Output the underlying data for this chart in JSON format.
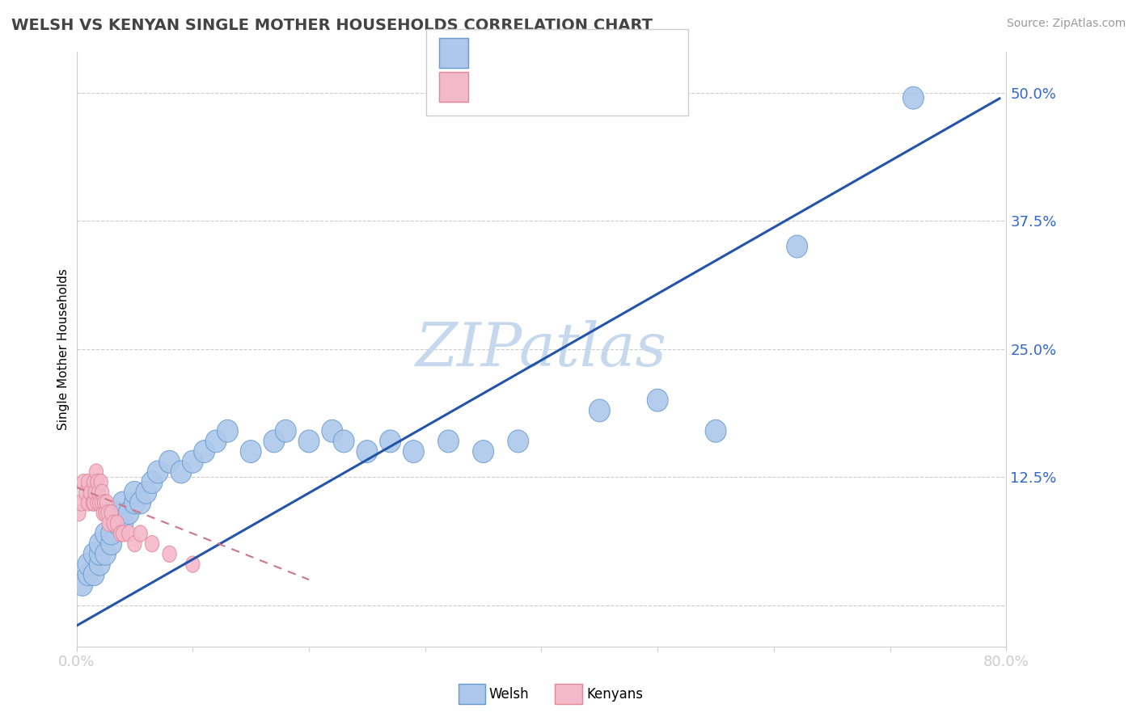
{
  "title": "WELSH VS KENYAN SINGLE MOTHER HOUSEHOLDS CORRELATION CHART",
  "source": "Source: ZipAtlas.com",
  "ylabel": "Single Mother Households",
  "xlim": [
    0.0,
    0.8
  ],
  "ylim": [
    -0.04,
    0.54
  ],
  "yticks": [
    0.0,
    0.125,
    0.25,
    0.375,
    0.5
  ],
  "ytick_labels": [
    "",
    "12.5%",
    "25.0%",
    "37.5%",
    "50.0%"
  ],
  "xticks": [
    0.0,
    0.1,
    0.2,
    0.3,
    0.4,
    0.5,
    0.6,
    0.7,
    0.8
  ],
  "xtick_labels_show": [
    "0.0%",
    "",
    "",
    "",
    "",
    "",
    "",
    "",
    "80.0%"
  ],
  "welsh_color": "#adc8eb",
  "welsh_edge_color": "#6699cc",
  "kenyan_color": "#f4b8cb",
  "kenyan_edge_color": "#e08898",
  "welsh_line_color": "#2255aa",
  "kenyan_line_color": "#cc7788",
  "legend_text_color": "#3366cc",
  "welsh_x": [
    0.005,
    0.01,
    0.01,
    0.015,
    0.015,
    0.02,
    0.02,
    0.02,
    0.025,
    0.025,
    0.03,
    0.03,
    0.035,
    0.035,
    0.04,
    0.04,
    0.045,
    0.05,
    0.05,
    0.055,
    0.06,
    0.065,
    0.07,
    0.08,
    0.09,
    0.1,
    0.11,
    0.12,
    0.13,
    0.15,
    0.17,
    0.18,
    0.2,
    0.22,
    0.23,
    0.25,
    0.27,
    0.29,
    0.32,
    0.35,
    0.38,
    0.45,
    0.5,
    0.55,
    0.62,
    0.72
  ],
  "welsh_y": [
    0.02,
    0.03,
    0.04,
    0.03,
    0.05,
    0.04,
    0.05,
    0.06,
    0.05,
    0.07,
    0.06,
    0.07,
    0.08,
    0.09,
    0.08,
    0.1,
    0.09,
    0.1,
    0.11,
    0.1,
    0.11,
    0.12,
    0.13,
    0.14,
    0.13,
    0.14,
    0.15,
    0.16,
    0.17,
    0.15,
    0.16,
    0.17,
    0.16,
    0.17,
    0.16,
    0.15,
    0.16,
    0.15,
    0.16,
    0.15,
    0.16,
    0.19,
    0.2,
    0.17,
    0.35,
    0.495
  ],
  "kenyan_x": [
    0.002,
    0.004,
    0.006,
    0.008,
    0.01,
    0.01,
    0.012,
    0.014,
    0.015,
    0.015,
    0.016,
    0.017,
    0.018,
    0.018,
    0.019,
    0.02,
    0.021,
    0.022,
    0.022,
    0.023,
    0.024,
    0.025,
    0.026,
    0.027,
    0.028,
    0.03,
    0.032,
    0.035,
    0.038,
    0.04,
    0.045,
    0.05,
    0.055,
    0.065,
    0.08,
    0.1
  ],
  "kenyan_y": [
    0.09,
    0.1,
    0.12,
    0.11,
    0.1,
    0.12,
    0.11,
    0.1,
    0.12,
    0.1,
    0.11,
    0.13,
    0.1,
    0.12,
    0.11,
    0.1,
    0.12,
    0.1,
    0.11,
    0.09,
    0.1,
    0.09,
    0.1,
    0.09,
    0.08,
    0.09,
    0.08,
    0.08,
    0.07,
    0.07,
    0.07,
    0.06,
    0.07,
    0.06,
    0.05,
    0.04
  ],
  "welsh_line_x": [
    0.0,
    0.795
  ],
  "welsh_line_y": [
    -0.02,
    0.495
  ],
  "kenyan_line_x": [
    0.0,
    0.2
  ],
  "kenyan_line_y": [
    0.115,
    0.025
  ],
  "background_color": "#ffffff",
  "grid_color": "#cccccc",
  "watermark": "ZIPatlas",
  "watermark_color": "#c5d8ee"
}
